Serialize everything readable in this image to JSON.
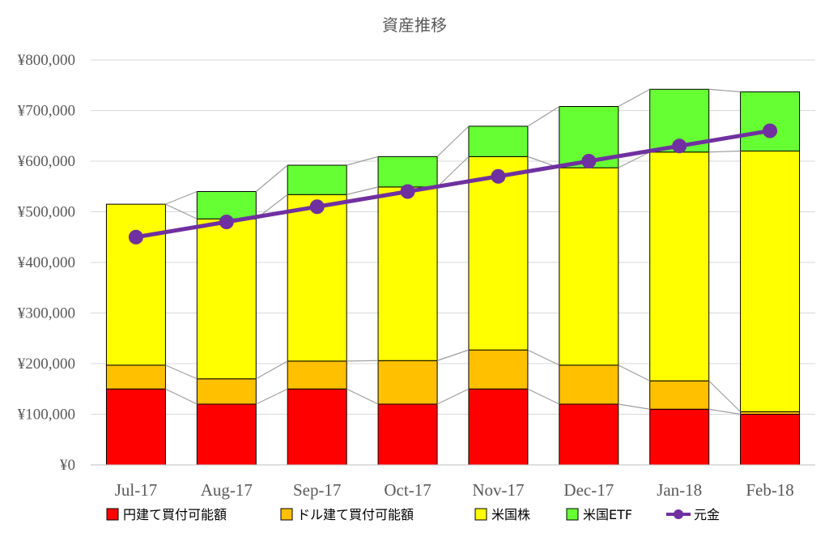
{
  "chart_data": {
    "type": "bar",
    "stacked": true,
    "title": "資産推移",
    "xlabel": "",
    "ylabel": "",
    "ylim": [
      0,
      800000
    ],
    "y_ticks": [
      "¥0",
      "¥100,000",
      "¥200,000",
      "¥300,000",
      "¥400,000",
      "¥500,000",
      "¥600,000",
      "¥700,000",
      "¥800,000"
    ],
    "y_tick_values": [
      0,
      100000,
      200000,
      300000,
      400000,
      500000,
      600000,
      700000,
      800000
    ],
    "grid": true,
    "legend_position": "bottom",
    "categories": [
      "Jul-17",
      "Aug-17",
      "Sep-17",
      "Oct-17",
      "Nov-17",
      "Dec-17",
      "Jan-18",
      "Feb-18"
    ],
    "series": [
      {
        "name": "円建て買付可能額",
        "kind": "bar",
        "color": "#ff0000",
        "values": [
          150000,
          120000,
          150000,
          120000,
          150000,
          120000,
          110000,
          100000
        ]
      },
      {
        "name": "ドル建て買付可能額",
        "kind": "bar",
        "color": "#ffc000",
        "values": [
          47000,
          50000,
          55000,
          86000,
          77000,
          77000,
          56000,
          5000
        ]
      },
      {
        "name": "米国株",
        "kind": "bar",
        "color": "#ffff00",
        "values": [
          318000,
          316000,
          329000,
          343000,
          382000,
          390000,
          452000,
          515000
        ]
      },
      {
        "name": "米国ETF",
        "kind": "bar",
        "color": "#66ff33",
        "values": [
          0,
          54000,
          58000,
          60000,
          60000,
          121000,
          124000,
          117000
        ]
      },
      {
        "name": "元金",
        "kind": "line",
        "color": "#7030a0",
        "values": [
          450000,
          480000,
          510000,
          540000,
          570000,
          600000,
          630000,
          660000
        ]
      }
    ]
  }
}
